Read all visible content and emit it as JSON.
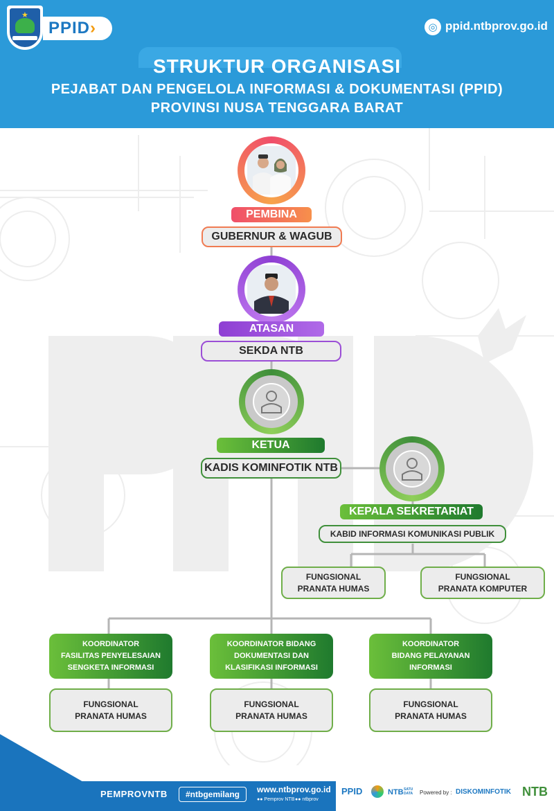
{
  "header": {
    "ppid_logo": "PPID",
    "site_url": "ppid.ntbprov.go.id",
    "title_line1": "STRUKTUR ORGANISASI",
    "title_line2": "PEJABAT DAN PENGELOLA INFORMASI & DOKUMENTASI (PPID)",
    "title_line3": "PROVINSI NUSA TENGGARA BARAT"
  },
  "org": {
    "pembina": {
      "role": "PEMBINA",
      "name": "GUBERNUR & WAGUB",
      "color": "#f0566a"
    },
    "atasan": {
      "role": "ATASAN",
      "name": "SEKDA NTB",
      "color": "#8e3fd3"
    },
    "ketua": {
      "role": "KETUA",
      "name": "KADIS KOMINFOTIK NTB",
      "color": "#3f8f3a"
    },
    "kepala_sekretariat": {
      "role": "KEPALA SEKRETARIAT",
      "name": "KABID INFORMASI KOMUNIKASI PUBLIK"
    },
    "sekretariat_staff": [
      {
        "line1": "FUNGSIONAL",
        "line2": "PRANATA HUMAS"
      },
      {
        "line1": "FUNGSIONAL",
        "line2": "PRANATA KOMPUTER"
      }
    ],
    "koordinator": [
      {
        "line1": "KOORDINATOR",
        "line2": "FASILITAS PENYELESAIAN",
        "line3": "SENGKETA INFORMASI"
      },
      {
        "line1": "KOORDINATOR BIDANG",
        "line2": "DOKUMENTASI DAN",
        "line3": "KLASIFIKASI INFORMASI"
      },
      {
        "line1": "KOORDINATOR",
        "line2": "BIDANG PELAYANAN",
        "line3": "INFORMASI"
      }
    ],
    "koordinator_staff": [
      {
        "line1": "FUNGSIONAL",
        "line2": "PRANATA HUMAS"
      },
      {
        "line1": "FUNGSIONAL",
        "line2": "PRANATA HUMAS"
      },
      {
        "line1": "FUNGSIONAL",
        "line2": "PRANATA HUMAS"
      }
    ]
  },
  "footer": {
    "pemprov": "PEMPROVNTB",
    "hashtag": "#ntbgemilang",
    "website": "www.ntbprov.go.id",
    "social_1": "Pemprov NTB",
    "social_2": "ntbprov",
    "logo_ppid": "PPID",
    "logo_ntb_satu_data": "NTB",
    "satu_data": "SATU DATA",
    "powered_by": "Powered by :",
    "diskominfotik": "DISKOMINFOTIK",
    "ntb": "NTB"
  }
}
